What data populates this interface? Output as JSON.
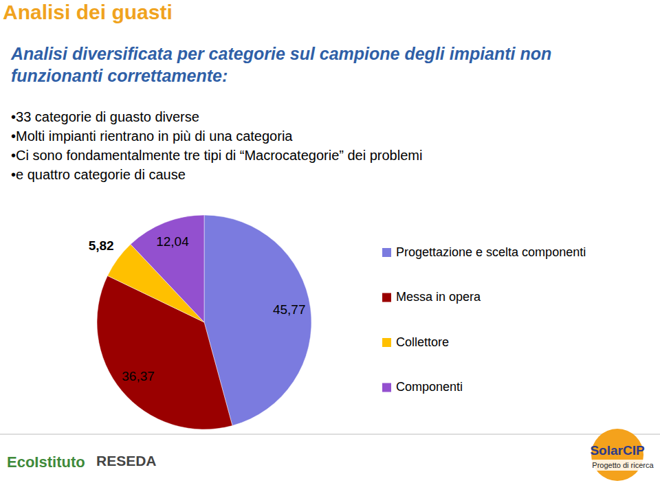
{
  "chart_data": {
    "type": "pie",
    "categories": [
      "Progettazione e scelta componenti",
      "Messa in opera",
      "Collettore",
      "Componenti"
    ],
    "values": [
      45.77,
      36.37,
      5.82,
      12.04
    ],
    "value_labels": [
      "45,77",
      "36,37",
      "5,82",
      "12,04"
    ],
    "colors": [
      "#7b7bdf",
      "#9a0000",
      "#ffc000",
      "#9350cf"
    ],
    "data_labels": true,
    "legend": "right"
  },
  "slide": {
    "title": "Analisi dei guasti",
    "subtitle": "Analisi diversificata per categorie sul campione degli impianti non funzionanti correttamente:",
    "bullets": [
      "33 categorie di guasto diverse",
      "Molti impianti rientrano in più di una categoria",
      "Ci sono fondamentalmente tre tipi di “Macrocategorie” dei problemi",
      "e quattro categorie di cause"
    ],
    "logos": [
      "EcoIstituto",
      "RESEDA",
      "SolarCIP",
      "Progetto di ricerca"
    ]
  }
}
